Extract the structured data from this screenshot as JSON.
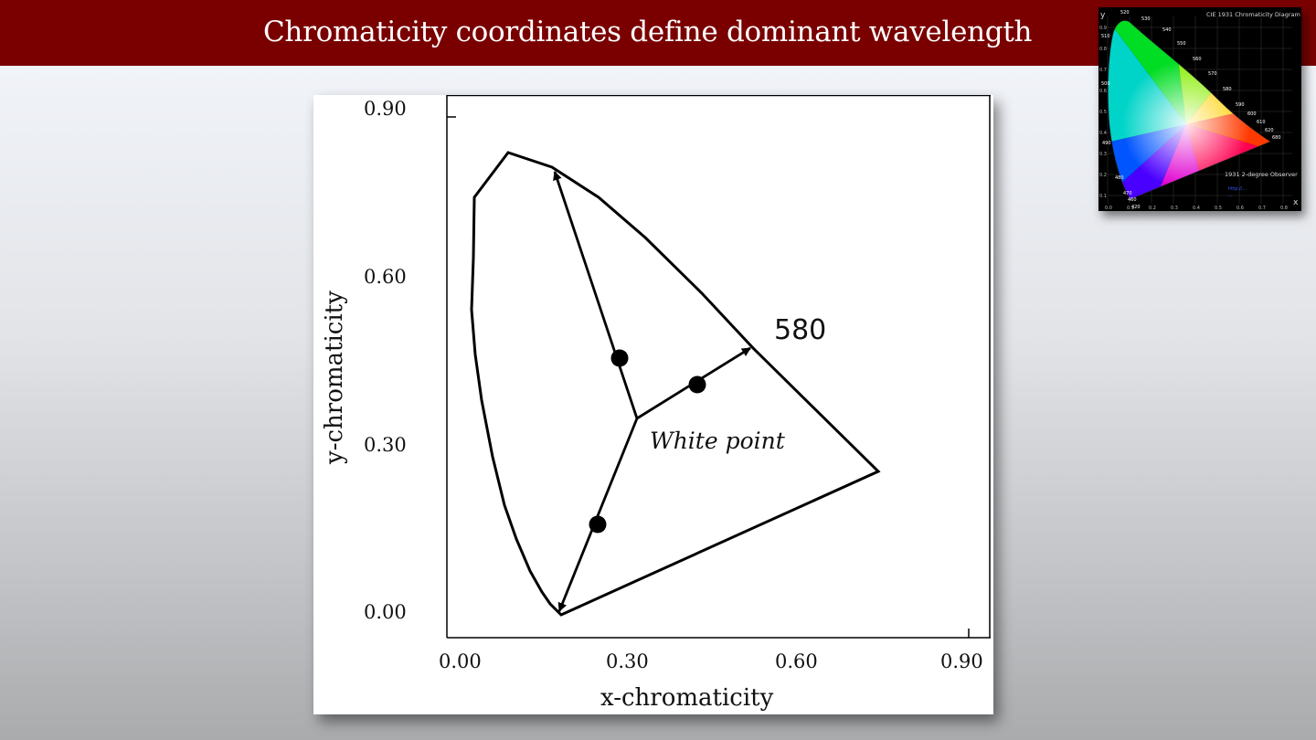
{
  "slide": {
    "title": "Chromaticity coordinates define dominant wavelength"
  },
  "figure": {
    "x_axis_label": "x-chromaticity",
    "y_axis_label": "y-chromaticity",
    "x_ticks": [
      "0.00",
      "0.30",
      "0.60",
      "0.90"
    ],
    "y_ticks": [
      "0.90",
      "0.60",
      "0.30",
      "0.00"
    ],
    "wavelength_label": "580",
    "white_point_label": "White point",
    "line_color": "#000000"
  },
  "inset": {
    "title": "CIE 1931 Chromaticity Diagram",
    "observer_note": "1931 2-degree Observer",
    "x_axis_letter": "x",
    "y_axis_letter": "y",
    "link_lines": [
      "http://...",
      "..."
    ],
    "x_ticks": [
      "0.0",
      "0.1",
      "0.2",
      "0.3",
      "0.4",
      "0.5",
      "0.6",
      "0.7",
      "0.8"
    ],
    "y_ticks": [
      "0.9",
      "0.8",
      "0.7",
      "0.6",
      "0.5",
      "0.4",
      "0.3",
      "0.2",
      "0.1"
    ],
    "wavelengths": [
      "520",
      "530",
      "540",
      "550",
      "560",
      "570",
      "580",
      "590",
      "600",
      "610",
      "620",
      "680",
      "510",
      "500",
      "490",
      "480",
      "470",
      "460",
      "420"
    ]
  }
}
